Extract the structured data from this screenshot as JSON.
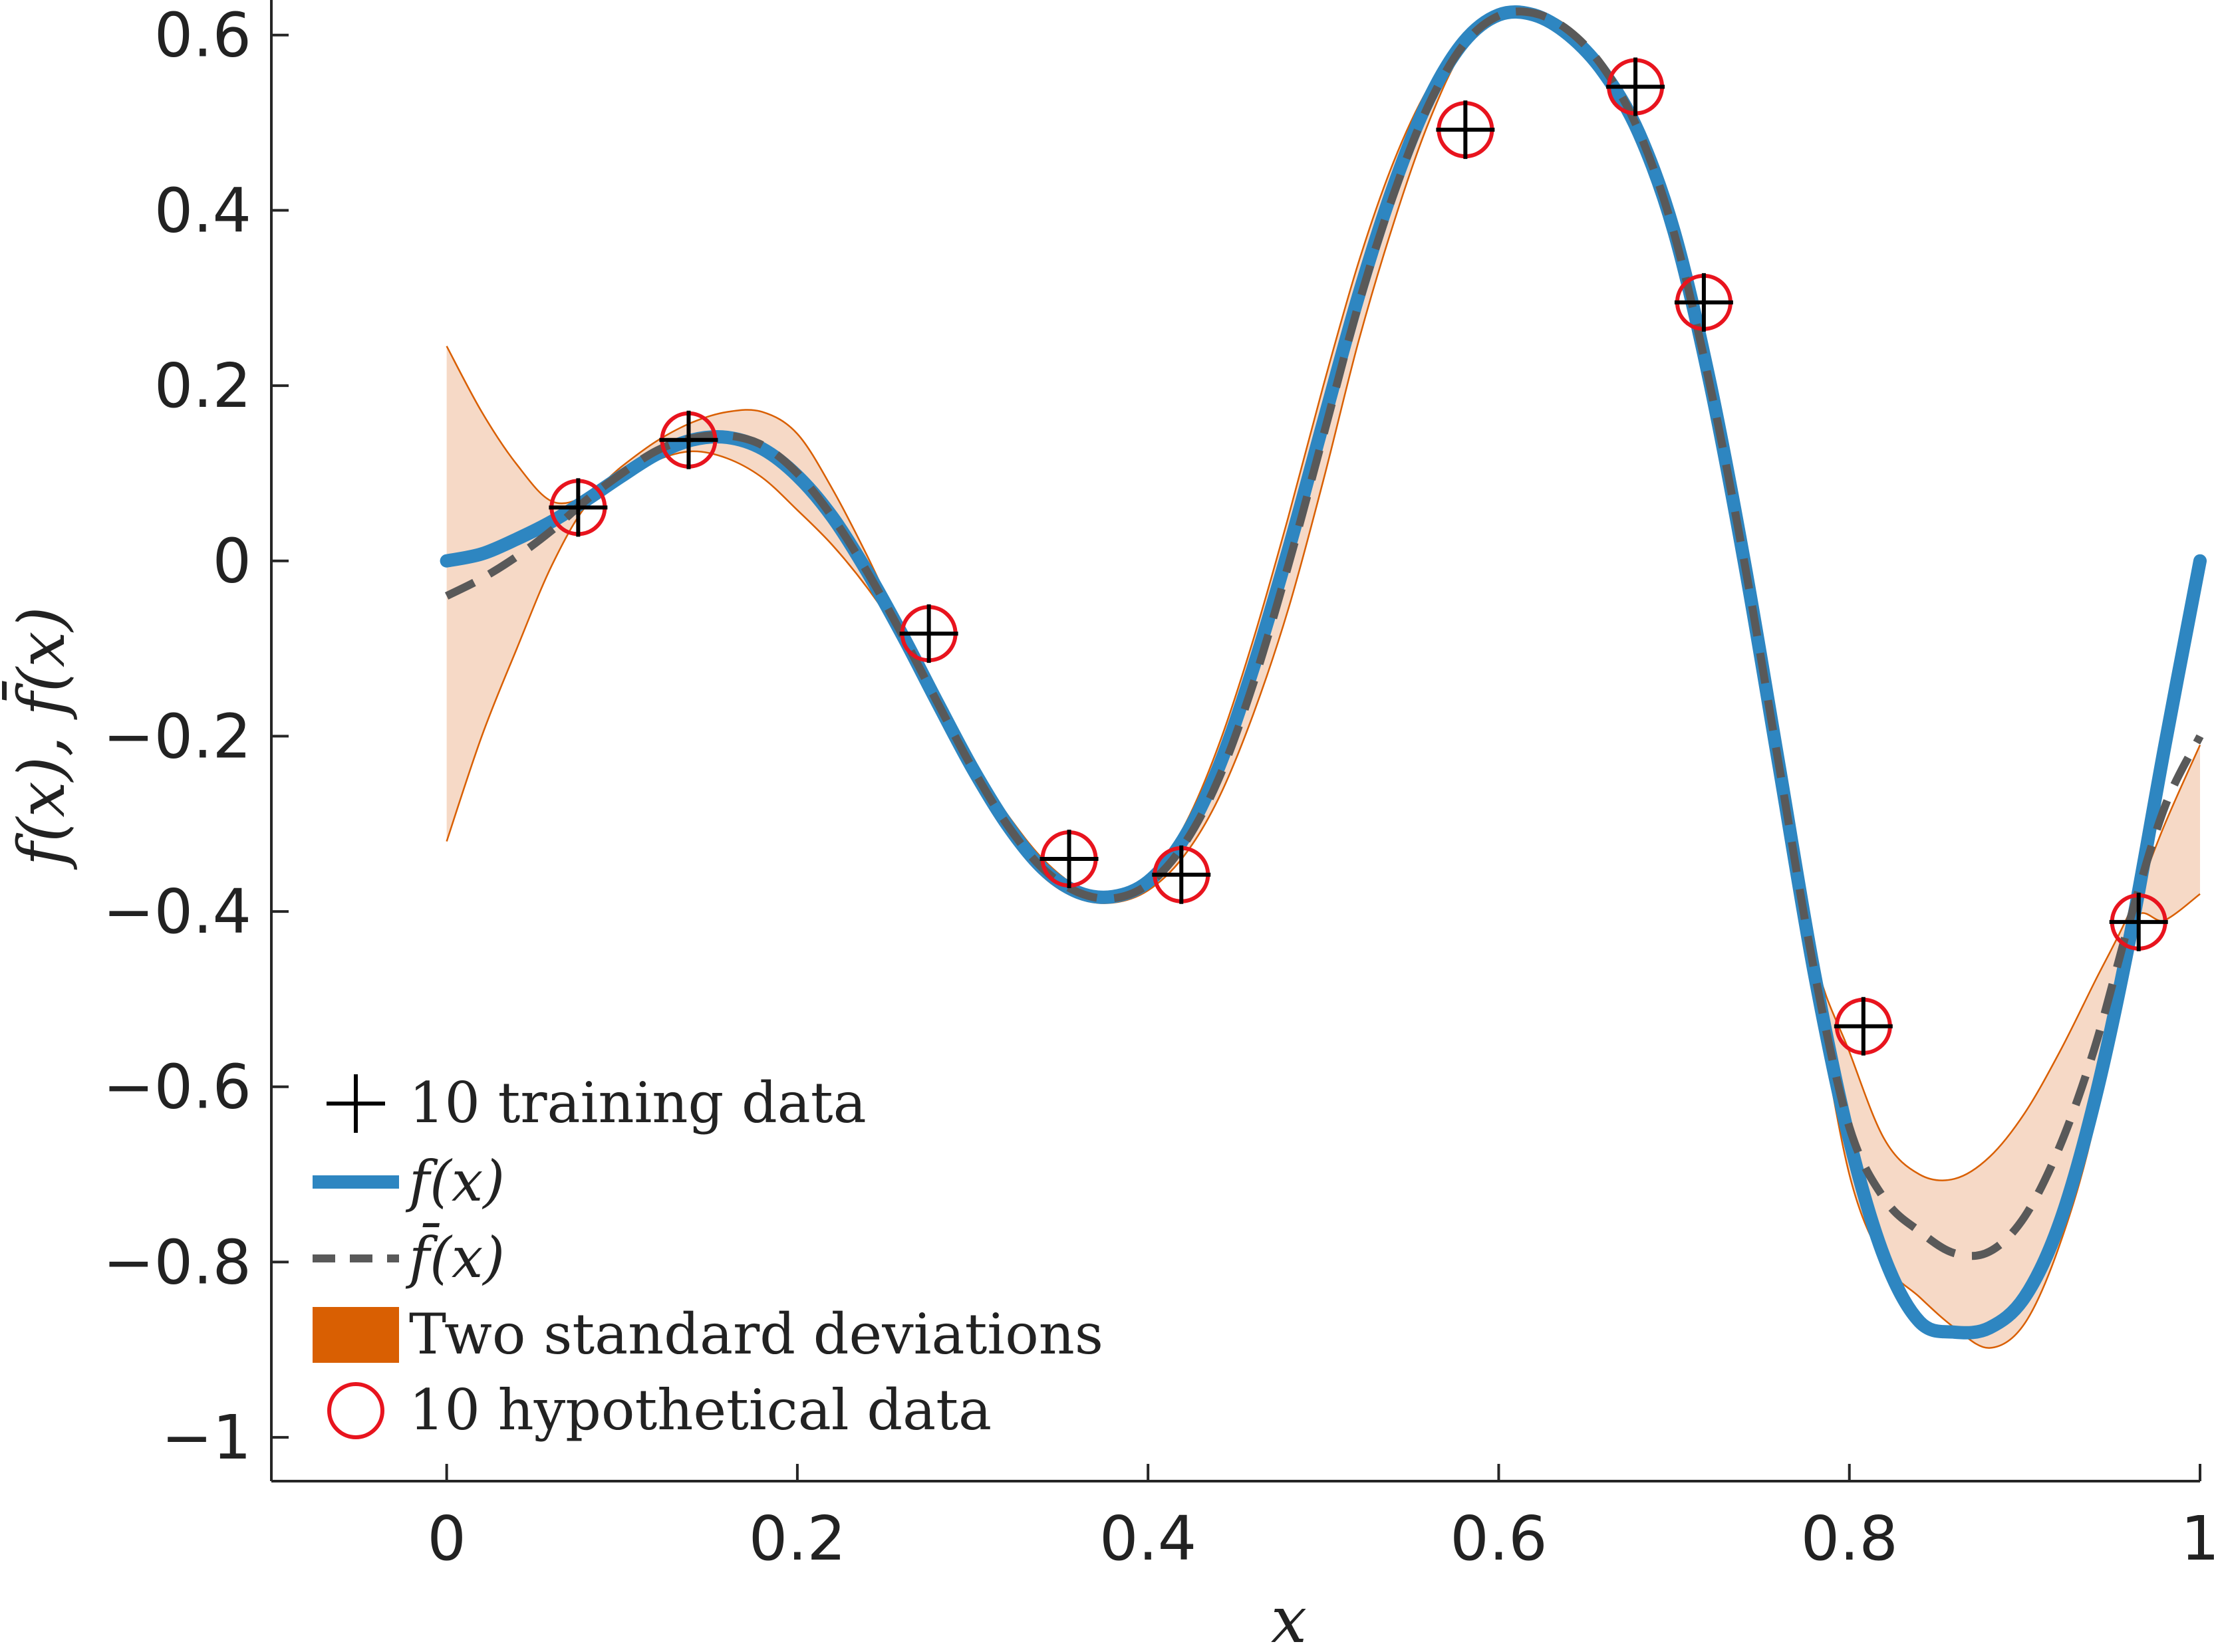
{
  "chart_data": {
    "type": "line",
    "xlabel": "x",
    "ylabel": "f(x), f̄(x)",
    "xlim": [
      -0.1,
      1.0
    ],
    "ylim": [
      -1.05,
      0.64
    ],
    "x_ticks": [
      "0",
      "0.2",
      "0.4",
      "0.6",
      "0.8",
      "1"
    ],
    "y_ticks": [
      "0.6",
      "0.4",
      "0.2",
      "0",
      "−0.2",
      "−0.4",
      "−0.6",
      "−0.8",
      "−1"
    ],
    "x_tick_values": [
      0,
      0.2,
      0.4,
      0.6,
      0.8,
      1.0
    ],
    "y_tick_values": [
      0.6,
      0.4,
      0.2,
      0,
      -0.2,
      -0.4,
      -0.6,
      -0.8,
      -1.0
    ],
    "grid": false,
    "legend_position": "bottom-left",
    "colors": {
      "true_function": "#2e86c1",
      "mean": "#595959",
      "band_fill": "#f6d9c6",
      "band_edge": "#d95f02",
      "training": "#000000",
      "hypothetical": "#e8141e"
    },
    "legend": [
      {
        "key": "training",
        "label": "10 training data"
      },
      {
        "key": "true",
        "label": "f(x)"
      },
      {
        "key": "mean",
        "label": "f̄(x)"
      },
      {
        "key": "band",
        "label": "Two standard deviations"
      },
      {
        "key": "hypothetical",
        "label": "10 hypothetical data"
      }
    ],
    "series": [
      {
        "name": "f(x)",
        "x": [
          0.0,
          0.02,
          0.04,
          0.06,
          0.08,
          0.1,
          0.12,
          0.14,
          0.16,
          0.18,
          0.2,
          0.22,
          0.24,
          0.26,
          0.28,
          0.3,
          0.32,
          0.34,
          0.36,
          0.38,
          0.4,
          0.42,
          0.44,
          0.46,
          0.48,
          0.5,
          0.52,
          0.54,
          0.56,
          0.58,
          0.6,
          0.62,
          0.64,
          0.66,
          0.68,
          0.7,
          0.72,
          0.74,
          0.76,
          0.78,
          0.8,
          0.82,
          0.84,
          0.86,
          0.88,
          0.9,
          0.92,
          0.94,
          0.96,
          0.98,
          1.0
        ],
        "y": [
          0.0,
          0.008,
          0.025,
          0.045,
          0.07,
          0.097,
          0.122,
          0.138,
          0.141,
          0.128,
          0.097,
          0.05,
          -0.013,
          -0.085,
          -0.162,
          -0.237,
          -0.302,
          -0.351,
          -0.378,
          -0.383,
          -0.366,
          -0.318,
          -0.237,
          -0.122,
          0.012,
          0.158,
          0.302,
          0.427,
          0.526,
          0.592,
          0.623,
          0.623,
          0.6,
          0.557,
          0.488,
          0.376,
          0.208,
          0.0,
          -0.235,
          -0.47,
          -0.66,
          -0.795,
          -0.868,
          -0.88,
          -0.875,
          -0.84,
          -0.755,
          -0.615,
          -0.43,
          -0.21,
          0.0
        ]
      },
      {
        "name": "f̄(x)",
        "x": [
          0.0,
          0.02,
          0.04,
          0.06,
          0.08,
          0.1,
          0.12,
          0.14,
          0.16,
          0.18,
          0.2,
          0.22,
          0.24,
          0.26,
          0.28,
          0.3,
          0.32,
          0.34,
          0.36,
          0.38,
          0.4,
          0.42,
          0.44,
          0.46,
          0.48,
          0.5,
          0.52,
          0.54,
          0.56,
          0.58,
          0.6,
          0.62,
          0.64,
          0.66,
          0.68,
          0.7,
          0.72,
          0.74,
          0.76,
          0.78,
          0.8,
          0.82,
          0.84,
          0.86,
          0.88,
          0.9,
          0.92,
          0.94,
          0.96,
          0.98,
          1.0
        ],
        "y": [
          -0.04,
          -0.02,
          0.005,
          0.035,
          0.07,
          0.1,
          0.126,
          0.14,
          0.143,
          0.132,
          0.1,
          0.05,
          -0.013,
          -0.085,
          -0.162,
          -0.237,
          -0.302,
          -0.351,
          -0.378,
          -0.385,
          -0.369,
          -0.325,
          -0.25,
          -0.14,
          -0.005,
          0.143,
          0.292,
          0.418,
          0.52,
          0.589,
          0.622,
          0.625,
          0.605,
          0.562,
          0.49,
          0.374,
          0.205,
          0.0,
          -0.235,
          -0.468,
          -0.646,
          -0.728,
          -0.765,
          -0.79,
          -0.788,
          -0.748,
          -0.668,
          -0.555,
          -0.41,
          -0.28,
          -0.2
        ]
      }
    ],
    "band": {
      "name": "Two standard deviations",
      "x": [
        0.0,
        0.02,
        0.04,
        0.06,
        0.08,
        0.1,
        0.12,
        0.14,
        0.16,
        0.18,
        0.2,
        0.22,
        0.24,
        0.26,
        0.28,
        0.3,
        0.32,
        0.34,
        0.36,
        0.38,
        0.4,
        0.42,
        0.44,
        0.46,
        0.48,
        0.5,
        0.52,
        0.54,
        0.56,
        0.58,
        0.6,
        0.62,
        0.64,
        0.66,
        0.68,
        0.7,
        0.72,
        0.74,
        0.76,
        0.78,
        0.8,
        0.82,
        0.84,
        0.86,
        0.88,
        0.9,
        0.92,
        0.94,
        0.96,
        0.98,
        1.0
      ],
      "upper": [
        0.245,
        0.17,
        0.11,
        0.068,
        0.075,
        0.108,
        0.137,
        0.158,
        0.17,
        0.17,
        0.145,
        0.082,
        0.005,
        -0.08,
        -0.16,
        -0.23,
        -0.29,
        -0.34,
        -0.372,
        -0.382,
        -0.36,
        -0.305,
        -0.212,
        -0.09,
        0.05,
        0.2,
        0.34,
        0.455,
        0.54,
        0.594,
        0.626,
        0.628,
        0.609,
        0.564,
        0.492,
        0.378,
        0.208,
        0.01,
        -0.222,
        -0.45,
        -0.56,
        -0.66,
        -0.7,
        -0.705,
        -0.68,
        -0.63,
        -0.56,
        -0.48,
        -0.4,
        -0.3,
        -0.21
      ],
      "lower": [
        -0.32,
        -0.2,
        -0.1,
        -0.005,
        0.064,
        0.092,
        0.115,
        0.125,
        0.117,
        0.095,
        0.058,
        0.018,
        -0.031,
        -0.09,
        -0.164,
        -0.242,
        -0.312,
        -0.36,
        -0.385,
        -0.39,
        -0.376,
        -0.338,
        -0.272,
        -0.175,
        -0.055,
        0.092,
        0.25,
        0.385,
        0.5,
        0.584,
        0.618,
        0.622,
        0.601,
        0.559,
        0.487,
        0.37,
        0.2,
        -0.01,
        -0.249,
        -0.485,
        -0.7,
        -0.8,
        -0.84,
        -0.875,
        -0.898,
        -0.87,
        -0.78,
        -0.64,
        -0.42,
        -0.41,
        -0.38
      ]
    },
    "training_data": {
      "x": [
        0.075,
        0.138,
        0.275,
        0.355,
        0.419,
        0.581,
        0.678,
        0.717,
        0.808,
        0.965
      ],
      "y": [
        0.061,
        0.138,
        -0.083,
        -0.34,
        -0.358,
        0.492,
        0.541,
        0.295,
        -0.531,
        -0.412
      ]
    },
    "hypothetical_data": {
      "x": [
        0.075,
        0.138,
        0.275,
        0.355,
        0.419,
        0.581,
        0.678,
        0.717,
        0.808,
        0.965
      ],
      "y": [
        0.061,
        0.138,
        -0.083,
        -0.34,
        -0.358,
        0.492,
        0.541,
        0.295,
        -0.531,
        -0.412
      ]
    }
  }
}
